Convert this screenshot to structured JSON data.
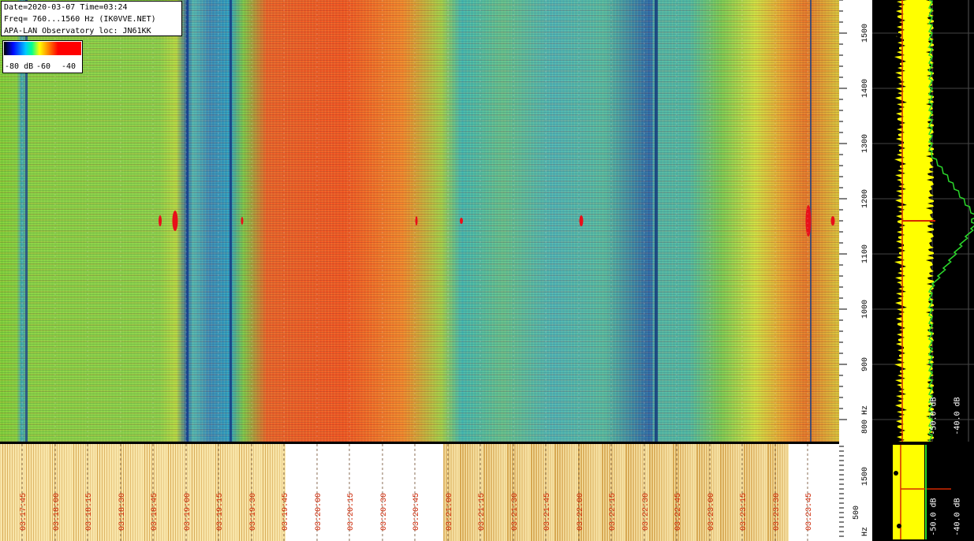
{
  "header": {
    "line1": "Date=2020-03-07 Time=03:24",
    "line2": "Freq= 760...1560 Hz (IK0VVE.NET)",
    "line3": "APA-LAN Observatory loc: JN61KK"
  },
  "colorbar": {
    "label_a": "-80 dB",
    "label_b": "-60",
    "label_c": "-40"
  },
  "spectrum": {
    "label_a": "-50.0 dB",
    "label_b": "-40.0 dB",
    "strip_label_a": "-50.0 dB",
    "strip_label_b": "-40.0 dB"
  },
  "strip_axis": {
    "tick_top": "1500",
    "tick_mid": "500",
    "unit": "Hz"
  },
  "colors": {
    "line": "#d42800",
    "grid": "#6b4a2a"
  },
  "chart_data": {
    "type": "heatmap",
    "title": "",
    "ylabel": "Hz",
    "ylim": [
      760,
      1560
    ],
    "y_ticks": [
      "800 Hz",
      "900",
      "1000",
      "1100",
      "1200",
      "1300",
      "1400",
      "1500"
    ],
    "time_ticks": [
      "03:17:45",
      "03:18:00",
      "03:18:15",
      "03:18:30",
      "03:18:45",
      "03:19:00",
      "03:19:15",
      "03:19:30",
      "03:19:45",
      "03:20:00",
      "03:20:15",
      "03:20:30",
      "03:20:45",
      "03:21:00",
      "03:21:15",
      "03:21:30",
      "03:21:45",
      "03:22:00",
      "03:22:15",
      "03:22:30",
      "03:22:45",
      "03:23:00",
      "03:23:15",
      "03:23:30",
      "03:23:45"
    ],
    "frequency_line_hz": 1160
  }
}
